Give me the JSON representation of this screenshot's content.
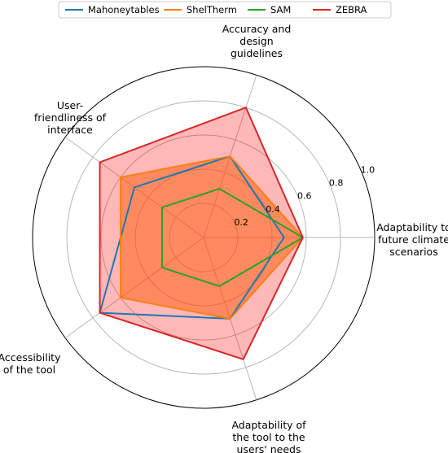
{
  "chart_data": {
    "type": "radar",
    "axes": [
      "Adaptability to\nfuture climate\nscenarios",
      "Accuracy and\ndesign\nguidelines",
      "User-\nfriendliness of\ninterface",
      "Accessibility\nof the tool",
      "Adaptability of\nthe tool to the\nusers' needs"
    ],
    "rlim": [
      0,
      1.0
    ],
    "rticks": [
      0.2,
      0.4,
      0.6,
      0.8,
      1.0
    ],
    "rtick_labels": [
      "0.2",
      "0.4",
      "0.6",
      "0.8",
      "1.0"
    ],
    "grid": true,
    "legend_position": "top",
    "series": [
      {
        "name": "Mahoneytables",
        "color": "#1f77b4",
        "fill": false,
        "values": [
          0.47,
          0.5,
          0.5,
          0.75,
          0.5
        ]
      },
      {
        "name": "ShelTherm",
        "color": "#ff7f0e",
        "fill": true,
        "fill_color": "#ff7f0e",
        "fill_opacity": 0.5,
        "values": [
          0.58,
          0.5,
          0.6,
          0.6,
          0.5
        ]
      },
      {
        "name": "SAM",
        "color": "#2ca02c",
        "fill": false,
        "values": [
          0.58,
          0.3,
          0.3,
          0.3,
          0.3
        ]
      },
      {
        "name": "ZEBRA",
        "color": "#d62728",
        "fill": true,
        "fill_color": "#ff0000",
        "fill_opacity": 0.28,
        "values": [
          0.58,
          0.8,
          0.75,
          0.75,
          0.75
        ]
      }
    ]
  }
}
